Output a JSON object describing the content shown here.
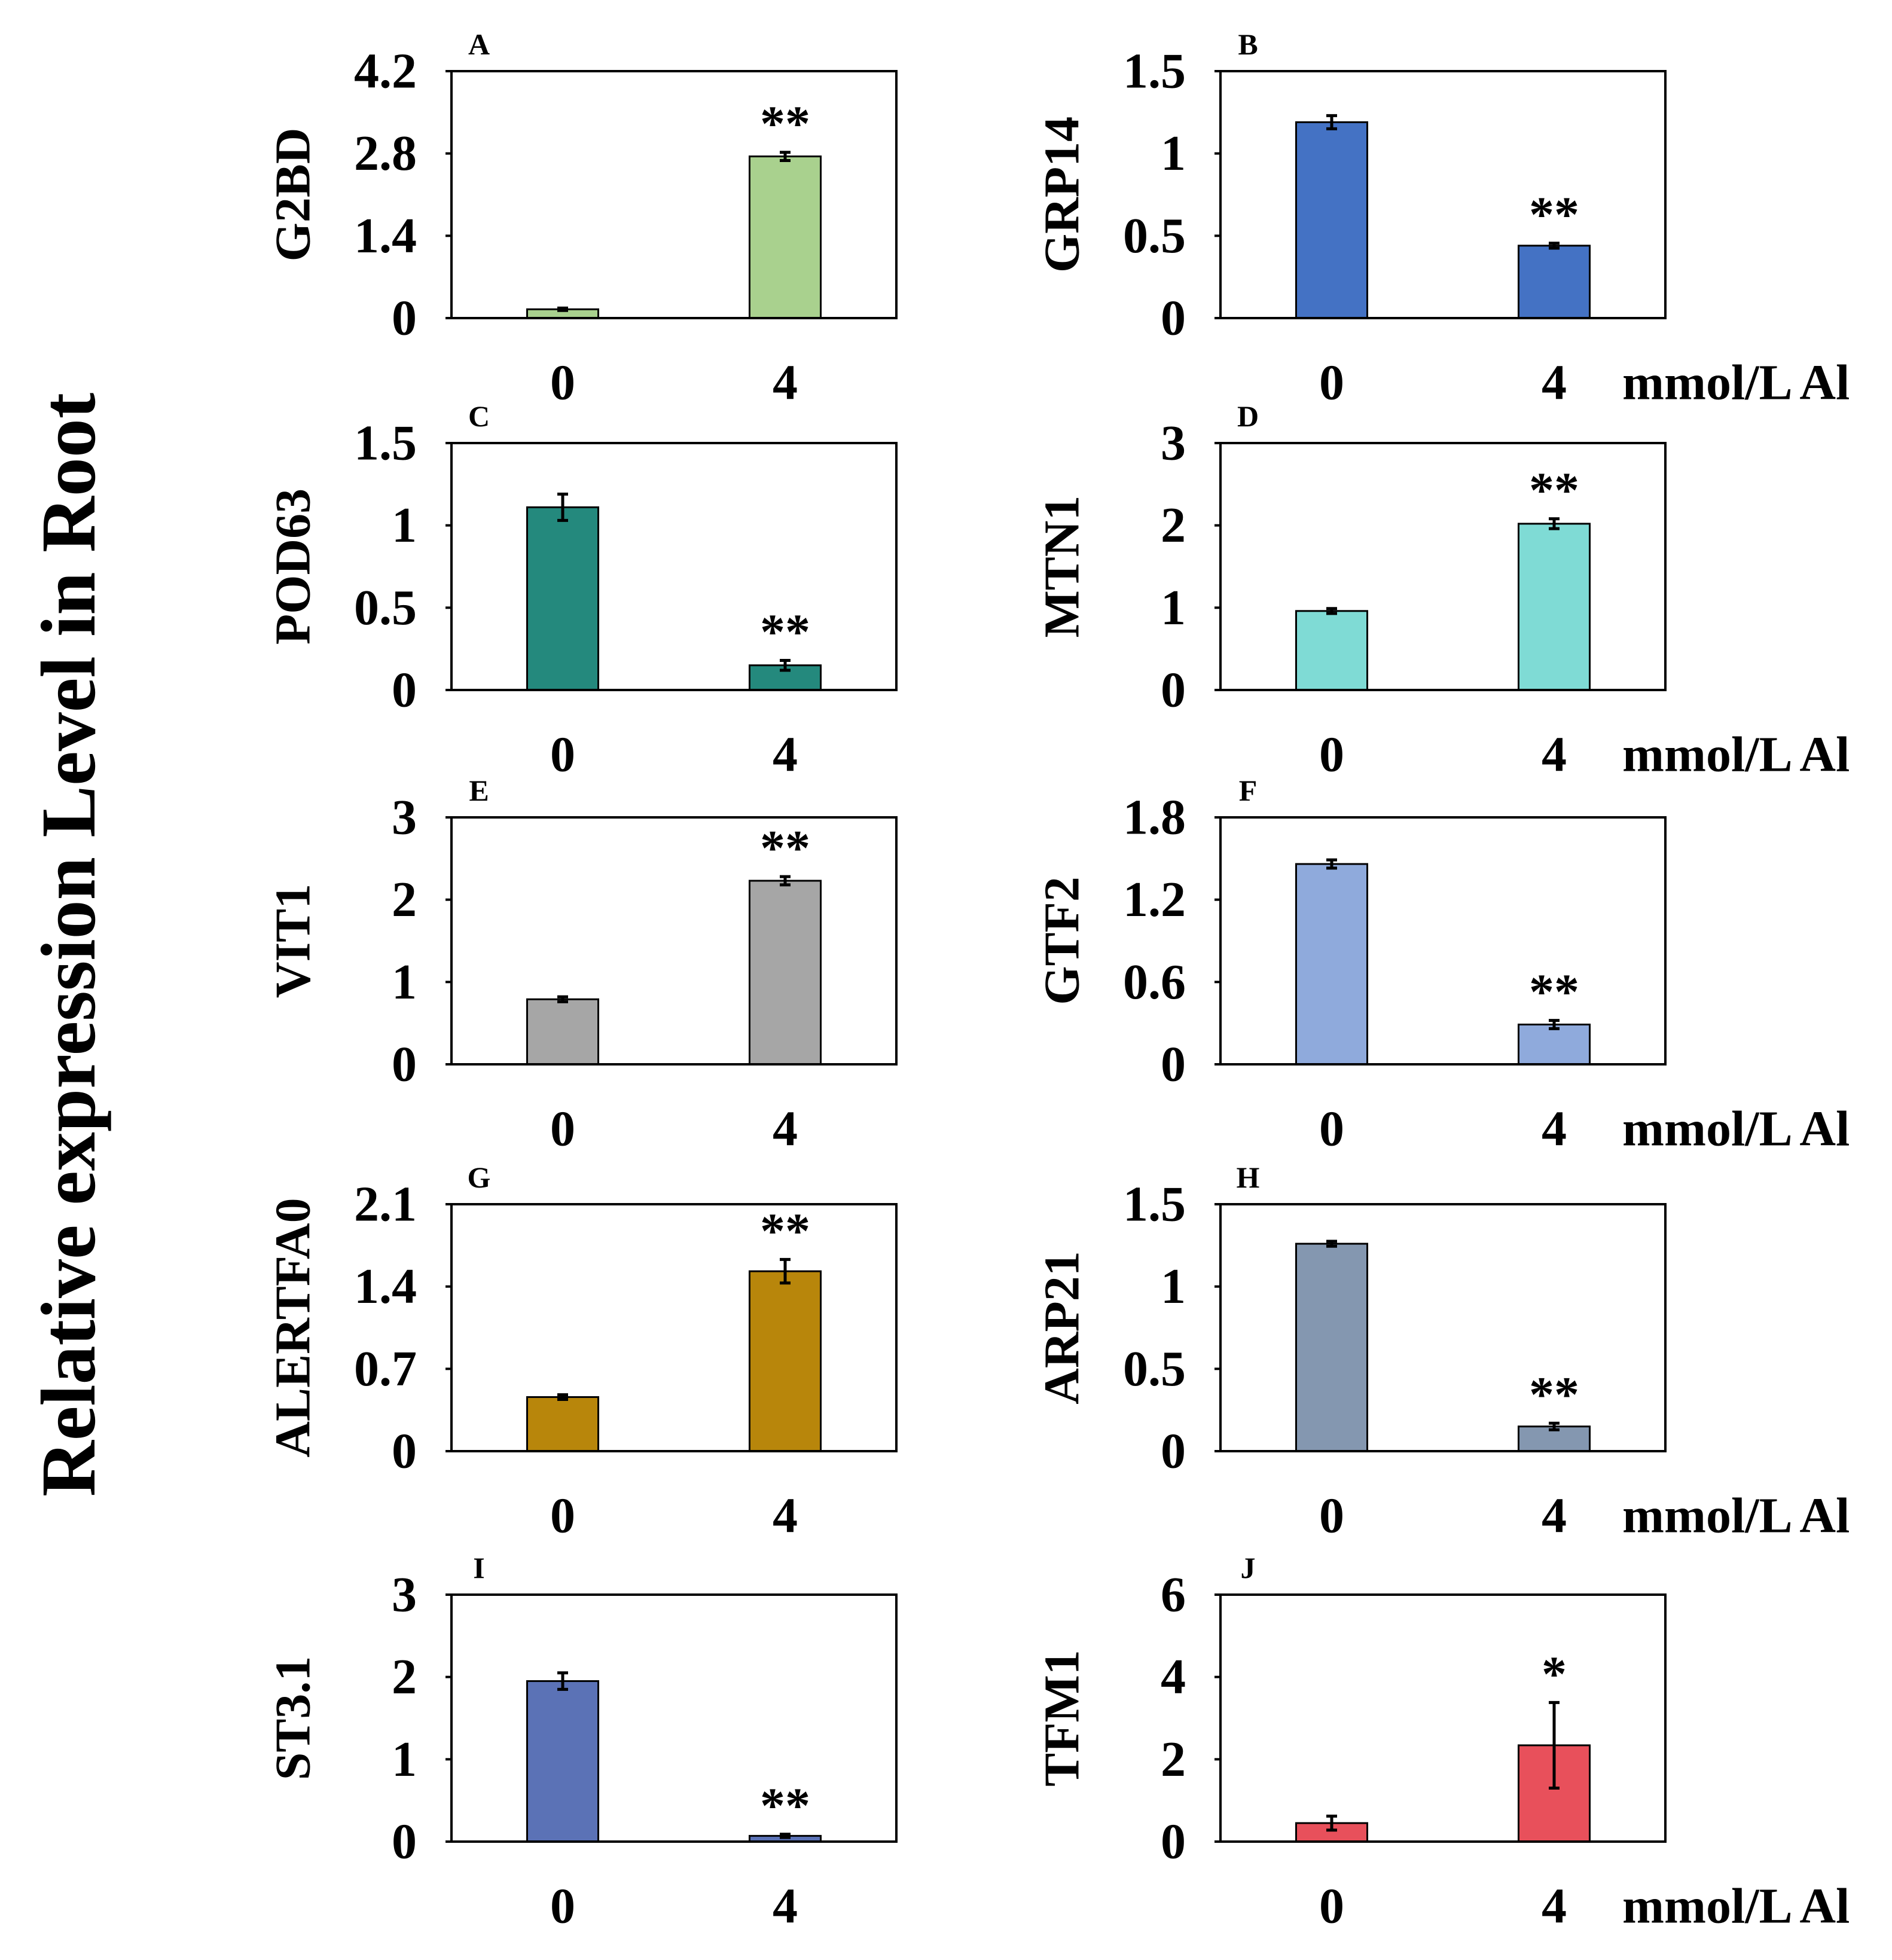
{
  "figure": {
    "ylabel": "Relative expression Level in Root"
  },
  "chart_data": [
    {
      "panel": "A",
      "type": "bar",
      "ylabel": "G2BD",
      "categories": [
        "0",
        "4"
      ],
      "values": [
        0.15,
        2.75
      ],
      "errors": [
        0.02,
        0.07
      ],
      "ylim": [
        0,
        4.2
      ],
      "yticks": [
        0,
        1.4,
        2.8,
        4.2
      ],
      "significance": {
        "bar": 1,
        "label": "**"
      },
      "color": "#a9d18e"
    },
    {
      "panel": "B",
      "type": "bar",
      "ylabel": "GRP14",
      "xlabel": "mmol/L Al",
      "categories": [
        "0",
        "4"
      ],
      "values": [
        1.19,
        0.44
      ],
      "errors": [
        0.04,
        0.015
      ],
      "ylim": [
        0,
        1.5
      ],
      "yticks": [
        0,
        0.5,
        1,
        1.5
      ],
      "significance": {
        "bar": 1,
        "label": "**"
      },
      "color": "#4472c4"
    },
    {
      "panel": "C",
      "type": "bar",
      "ylabel": "POD63",
      "categories": [
        "0",
        "4"
      ],
      "values": [
        1.11,
        0.15
      ],
      "errors": [
        0.08,
        0.03
      ],
      "ylim": [
        0,
        1.5
      ],
      "yticks": [
        0,
        0.5,
        1,
        1.5
      ],
      "significance": {
        "bar": 1,
        "label": "**"
      },
      "color": "#24897d"
    },
    {
      "panel": "D",
      "type": "bar",
      "ylabel": "MTN1",
      "xlabel": "mmol/L Al",
      "categories": [
        "0",
        "4"
      ],
      "values": [
        0.96,
        2.02
      ],
      "errors": [
        0.03,
        0.06
      ],
      "ylim": [
        0,
        3
      ],
      "yticks": [
        0,
        1,
        2,
        3
      ],
      "significance": {
        "bar": 1,
        "label": "**"
      },
      "color": "#7fdbd5"
    },
    {
      "panel": "E",
      "type": "bar",
      "ylabel": "VIT1",
      "categories": [
        "0",
        "4"
      ],
      "values": [
        0.79,
        2.23
      ],
      "errors": [
        0.03,
        0.05
      ],
      "ylim": [
        0,
        3
      ],
      "yticks": [
        0,
        1,
        2,
        3
      ],
      "significance": {
        "bar": 1,
        "label": "**"
      },
      "color": "#a6a6a6"
    },
    {
      "panel": "F",
      "type": "bar",
      "ylabel": "GTF2",
      "xlabel": "mmol/L Al",
      "categories": [
        "0",
        "4"
      ],
      "values": [
        1.46,
        0.29
      ],
      "errors": [
        0.03,
        0.03
      ],
      "ylim": [
        0,
        1.8
      ],
      "yticks": [
        0,
        0.6,
        1.2,
        1.8
      ],
      "significance": {
        "bar": 1,
        "label": "**"
      },
      "color": "#8faadc"
    },
    {
      "panel": "G",
      "type": "bar",
      "ylabel": "ALERTFA0",
      "categories": [
        "0",
        "4"
      ],
      "values": [
        0.46,
        1.53
      ],
      "errors": [
        0.02,
        0.1
      ],
      "ylim": [
        0,
        2.1
      ],
      "yticks": [
        0,
        0.7,
        1.4,
        2.1
      ],
      "significance": {
        "bar": 1,
        "label": "**"
      },
      "color": "#b8860b"
    },
    {
      "panel": "H",
      "type": "bar",
      "ylabel": "ARP21",
      "xlabel": "mmol/L Al",
      "categories": [
        "0",
        "4"
      ],
      "values": [
        1.26,
        0.15
      ],
      "errors": [
        0.015,
        0.02
      ],
      "ylim": [
        0,
        1.5
      ],
      "yticks": [
        0,
        0.5,
        1,
        1.5
      ],
      "significance": {
        "bar": 1,
        "label": "**"
      },
      "color": "#8497b0"
    },
    {
      "panel": "I",
      "type": "bar",
      "ylabel": "ST3.1",
      "categories": [
        "0",
        "4"
      ],
      "values": [
        1.95,
        0.07
      ],
      "errors": [
        0.1,
        0.02
      ],
      "ylim": [
        0,
        3
      ],
      "yticks": [
        0,
        1,
        2,
        3
      ],
      "significance": {
        "bar": 1,
        "label": "**"
      },
      "color": "#5b72b6"
    },
    {
      "panel": "J",
      "type": "bar",
      "ylabel": "TFM1",
      "xlabel": "mmol/L Al",
      "categories": [
        "0",
        "4"
      ],
      "values": [
        0.45,
        2.34
      ],
      "errors": [
        0.17,
        1.04
      ],
      "ylim": [
        0,
        6
      ],
      "yticks": [
        0,
        2,
        4,
        6
      ],
      "significance": {
        "bar": 1,
        "label": "*"
      },
      "color": "#e8505b"
    }
  ]
}
